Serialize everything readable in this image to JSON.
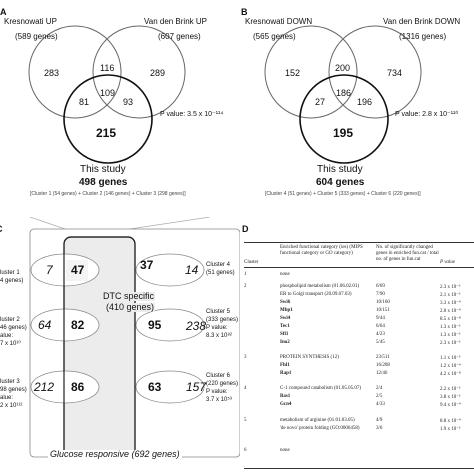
{
  "panelA": {
    "letter": "A",
    "left_set": "Kresnowati UP",
    "left_count": "(589 genes)",
    "right_set": "Van den Brink UP",
    "right_count": "(607 genes)",
    "regions": {
      "left_only": "283",
      "left_right": "116",
      "right_only": "289",
      "left_bottom": "81",
      "center": "109",
      "right_bottom": "93",
      "bottom_only": "215"
    },
    "pvalue": "P value: 3.5 x 10⁻¹¹⁴",
    "study_title": "This study",
    "study_count": "498 genes",
    "clusters": "[Cluster 1 (54 genes) + Cluster 2 (146 genes) + Cluster 3 (298 genes)]"
  },
  "panelB": {
    "letter": "B",
    "left_set": "Kresnowati DOWN",
    "left_count": "(565 genes)",
    "right_set": "Van den Brink DOWN",
    "right_count": "(1316 genes)",
    "regions": {
      "left_only": "152",
      "left_right": "200",
      "right_only": "734",
      "left_bottom": "27",
      "center": "186",
      "right_bottom": "196",
      "bottom_only": "195"
    },
    "pvalue": "P value: 2.8 x 10⁻¹¹⁰",
    "study_title": "This study",
    "study_count": "604 genes",
    "clusters": "[Cluster 4 (51 genes) + Cluster 5 (333 genes) + Cluster 6 (220 genes)]"
  },
  "panelC": {
    "letter": "C",
    "dtc_title": "DTC specific",
    "dtc_count": "(410 genes)",
    "glucose": "Glucose responsive (692 genes)",
    "left_clusters": [
      {
        "name": "luster 1",
        "genes": "4 genes)",
        "p": ""
      },
      {
        "name": "luster 2",
        "genes": "46 genes)",
        "p": "alue:",
        "pv": "7 x 10¹⁰"
      },
      {
        "name": "luster 3",
        "genes": "98 genes)",
        "p": "alue:",
        "pv": "2 x 10¹¹²"
      }
    ],
    "right_clusters": [
      {
        "name": "Cluster 4",
        "genes": "(51 genes)"
      },
      {
        "name": "Cluster 5",
        "genes": "(333 genes)",
        "p": "P value:",
        "pv": "8.3 x 10⁸²"
      },
      {
        "name": "Cluster 6",
        "genes": "(220 genes)",
        "p": "P value:",
        "pv": "3.7 x 10⁵³"
      }
    ],
    "rows": [
      {
        "left": "7",
        "center_left": "47",
        "center_right": "37",
        "right": "14"
      },
      {
        "left": "64",
        "center_left": "82",
        "center_right": "95",
        "right": "238"
      },
      {
        "left": "212",
        "center_left": "86",
        "center_right": "63",
        "right": "157"
      }
    ]
  },
  "panelD": {
    "letter": "D",
    "headers": {
      "cluster": "Cluster",
      "category": "Enriched functional category (ies) (MIPS functional category or GO category)",
      "changed": "No. of significantly changed genes in enriched fun.cat / total no. of genes in fun.cat",
      "pvalue": "P value"
    },
    "rows": [
      {
        "cluster": "1",
        "cat": "none",
        "n": "",
        "p": ""
      },
      {
        "cluster": "2",
        "cat": "phospholipid metabolism (01.06.02.01)",
        "n": "6/69",
        "p": "2.3 x 10⁻³"
      },
      {
        "cluster": "",
        "cat": "ER to Golgi transport (20.09.07.03)",
        "n": "7/90",
        "p": "2.1 x 10⁻³"
      },
      {
        "cluster": "",
        "cat": "Swi6",
        "n": "10/160",
        "p": "3.3 x 10⁻⁴"
      },
      {
        "cluster": "",
        "cat": "Mbp1",
        "n": "10/151",
        "p": "2.0 x 10⁻⁴"
      },
      {
        "cluster": "",
        "cat": "Swi4",
        "n": "9/44",
        "p": "8.5 x 10⁻⁸"
      },
      {
        "cluster": "",
        "cat": "Tec1",
        "n": "6/64",
        "p": "1.3 x 10⁻³"
      },
      {
        "cluster": "",
        "cat": "Sfl1",
        "n": "4/23",
        "p": "1.3 x 10⁻³"
      },
      {
        "cluster": "",
        "cat": "Ino2",
        "n": "5/45",
        "p": "2.3 x 10⁻³"
      },
      {
        "cluster": "3",
        "cat": "PROTEIN SYNTHESIS (12)",
        "n": "23/511",
        "p": "1.1 x 10⁻³"
      },
      {
        "cluster": "",
        "cat": "Fhl1",
        "n": "16/208",
        "p": "1.2 x 10⁻⁴"
      },
      {
        "cluster": "",
        "cat": "Rap1",
        "n": "12/46",
        "p": "4.2 x 10⁻⁸"
      },
      {
        "cluster": "4",
        "cat": "C-1 compound catabolism (01.05.05.07)",
        "n": "2/4",
        "p": "2.2 x 10⁻³"
      },
      {
        "cluster": "",
        "cat": "Bas1",
        "n": "2/5",
        "p": "3.8 x 10⁻³"
      },
      {
        "cluster": "",
        "cat": "Gcn4",
        "n": "4/33",
        "p": "9.4 x 10⁻⁴"
      },
      {
        "cluster": "5",
        "cat": "metabolism of arginine (01.01.03.05)",
        "n": "4/9",
        "p": "8.8 x 10⁻⁴"
      },
      {
        "cluster": "",
        "cat": "'de novo' protein folding (GO:0006458)",
        "n": "3/6",
        "p": "1.9 x 10⁻³"
      },
      {
        "cluster": "6",
        "cat": "none",
        "n": "",
        "p": ""
      }
    ]
  }
}
